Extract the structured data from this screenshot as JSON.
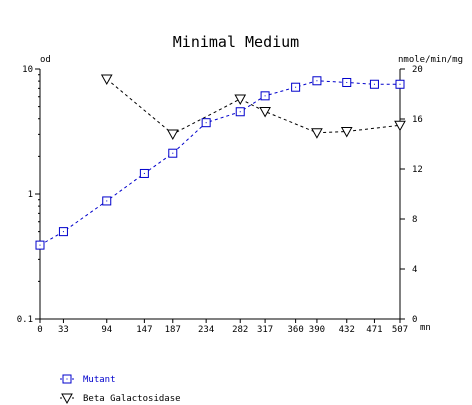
{
  "chart_data": {
    "type": "line",
    "title": "Minimal Medium",
    "xlabel": "mn",
    "ylabel_left": "od",
    "ylabel_right": "nmole/min/mg",
    "x_ticks": [
      0,
      33,
      94,
      147,
      187,
      234,
      282,
      317,
      360,
      390,
      432,
      471,
      507
    ],
    "xlim": [
      0,
      507
    ],
    "y_left": {
      "scale": "log",
      "lim": [
        0.1,
        10
      ],
      "ticks": [
        "0.1",
        "1",
        "10"
      ]
    },
    "y_right": {
      "scale": "linear",
      "lim": [
        0,
        20
      ],
      "ticks": [
        0,
        4,
        8,
        12,
        16,
        20
      ]
    },
    "series": [
      {
        "name": "Mutant",
        "axis": "left",
        "color": "#0000cc",
        "marker": "square",
        "x": [
          0,
          33,
          94,
          147,
          187,
          234,
          282,
          317,
          360,
          390,
          432,
          471,
          507
        ],
        "y": [
          0.39,
          0.5,
          0.88,
          1.46,
          2.12,
          3.72,
          4.55,
          6.1,
          7.15,
          8.05,
          7.8,
          7.55,
          7.55
        ]
      },
      {
        "name": "Beta Galactosidase",
        "axis": "right",
        "color": "#000000",
        "marker": "triangle-down",
        "x": [
          94,
          187,
          282,
          317,
          390,
          432,
          507
        ],
        "y": [
          19.2,
          14.8,
          17.6,
          16.6,
          14.9,
          15.0,
          15.5
        ]
      }
    ],
    "legend_position": "bottom-left",
    "grid": false
  }
}
